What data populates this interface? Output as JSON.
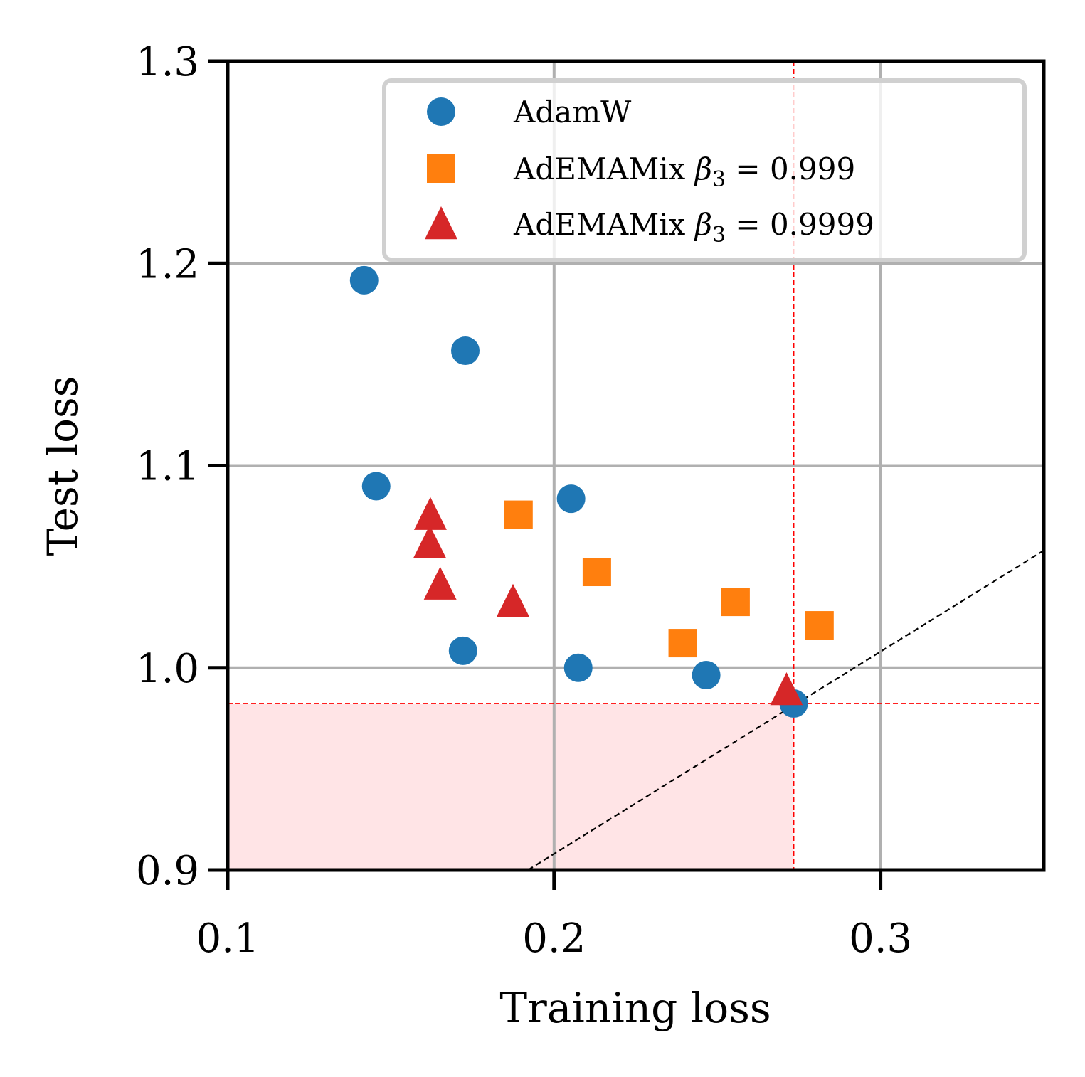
{
  "chart_data": {
    "type": "scatter",
    "title": "",
    "xlabel": "Training loss",
    "ylabel": "Test loss",
    "xlim": [
      0.1,
      0.35
    ],
    "ylim": [
      0.9,
      1.3
    ],
    "xticks": [
      0.1,
      0.2,
      0.3
    ],
    "xtick_labels": [
      "0.1",
      "0.2",
      "0.3"
    ],
    "yticks": [
      0.9,
      1.0,
      1.1,
      1.2,
      1.3
    ],
    "ytick_labels": [
      "0.9",
      "1.0",
      "1.1",
      "1.2",
      "1.3"
    ],
    "grid": true,
    "legend_position": "top-right",
    "series": [
      {
        "name": "AdamW",
        "label_main": "AdamW",
        "label_math": "",
        "label_sub": "",
        "label_value": "",
        "marker": "circle",
        "color": "#1f77b4",
        "x": [
          0.1418,
          0.1728,
          0.1455,
          0.2052,
          0.1721,
          0.2074,
          0.2466,
          0.2734
        ],
        "y": [
          1.1917,
          1.1568,
          1.0898,
          1.0836,
          1.0084,
          1.0,
          0.9964,
          0.9823
        ]
      },
      {
        "name": "AdEMAMix β3 = 0.999",
        "label_main": "AdEMAMix ",
        "label_math": "β",
        "label_sub": "3",
        "label_value": " = 0.999",
        "marker": "square",
        "color": "#ff7f0e",
        "x": [
          0.1891,
          0.2131,
          0.2394,
          0.2556,
          0.2813
        ],
        "y": [
          1.0757,
          1.0474,
          1.0122,
          1.0326,
          1.021
        ]
      },
      {
        "name": "AdEMAMix β3 = 0.9999",
        "label_main": "AdEMAMix ",
        "label_math": "β",
        "label_sub": "3",
        "label_value": " = 0.9999",
        "marker": "triangle",
        "color": "#d62728",
        "x": [
          0.1621,
          0.1619,
          0.1651,
          0.1874,
          0.2712
        ],
        "y": [
          1.0757,
          1.0618,
          1.0412,
          1.0327,
          0.989
        ]
      }
    ],
    "reference_lines": {
      "best_x": 0.2734,
      "best_y": 0.9823,
      "reference_color": "#ff0000",
      "shaded_region": {
        "x": [
          0.1,
          0.2734
        ],
        "y": [
          0.9,
          0.9823
        ],
        "color": "#ffe4e6"
      },
      "diagonal": {
        "slope": 1.0,
        "intercept": 0.708,
        "color": "#000000"
      }
    }
  }
}
